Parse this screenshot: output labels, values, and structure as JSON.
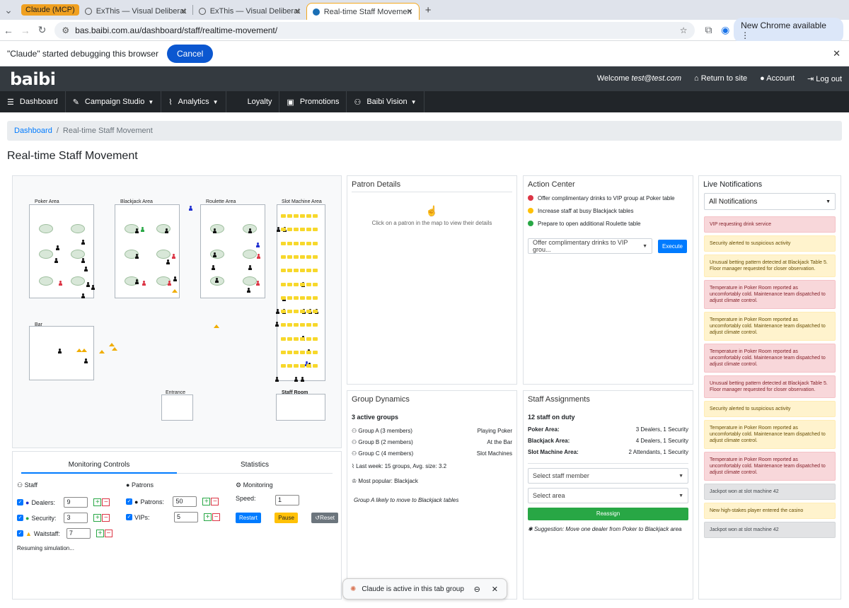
{
  "browser": {
    "tabs": [
      {
        "label": "Claude (MCP)"
      },
      {
        "label": "ExThis — Visual Deliberat"
      },
      {
        "label": "ExThis — Visual Deliberat"
      },
      {
        "label": "Real-time Staff Movemen"
      }
    ],
    "new_tab": "+",
    "url": "bas.baibi.com.au/dashboard/staff/realtime-movement/",
    "new_chrome": "New Chrome available",
    "debug_message": "\"Claude\" started debugging this browser",
    "debug_cancel": "Cancel"
  },
  "header": {
    "logo": "baibi",
    "welcome": "Welcome",
    "user": "test@test.com",
    "return": "Return to site",
    "account": "Account",
    "logout": "Log out"
  },
  "menu": [
    "Dashboard",
    "Campaign Studio",
    "Analytics",
    "Loyalty",
    "Promotions",
    "Baibi Vision"
  ],
  "breadcrumb": {
    "home": "Dashboard",
    "current": "Real-time Staff Movement"
  },
  "page_title": "Real-time Staff Movement",
  "map": {
    "zones": [
      "Poker Area",
      "Blackjack Area",
      "Roulette Area",
      "Slot Machine Area",
      "Bar",
      "Entrance",
      "Staff Room"
    ]
  },
  "controls": {
    "tabs": [
      "Monitoring Controls",
      "Statistics"
    ],
    "staff": {
      "heading": "Staff",
      "dealers_label": "Dealers:",
      "dealers": "9",
      "security_label": "Security:",
      "security": "3",
      "waitstaff_label": "Waitstaff:",
      "waitstaff": "7"
    },
    "patrons": {
      "heading": "Patrons",
      "patrons_label": "Patrons:",
      "patrons": "50",
      "vips_label": "VIPs:",
      "vips": "5"
    },
    "monitoring": {
      "heading": "Monitoring",
      "speed_label": "Speed:",
      "speed": "1",
      "restart": "Restart",
      "pause": "Pause",
      "reset": "Reset"
    },
    "status": "Resuming simulation..."
  },
  "patron_details": {
    "title": "Patron Details",
    "hint": "Click on a patron in the map to view their details"
  },
  "action_center": {
    "title": "Action Center",
    "items": [
      {
        "text": "Offer complimentary drinks to VIP group at Poker table",
        "color": "#dc3545"
      },
      {
        "text": "Increase staff at busy Blackjack tables",
        "color": "#ffc107"
      },
      {
        "text": "Prepare to open additional Roulette table",
        "color": "#28a745"
      }
    ],
    "select": "Offer complimentary drinks to VIP grou...",
    "execute": "Execute"
  },
  "group_dynamics": {
    "title": "Group Dynamics",
    "summary": "3 active groups",
    "groups": [
      {
        "name": "Group A (3 members)",
        "activity": "Playing Poker"
      },
      {
        "name": "Group B (2 members)",
        "activity": "At the Bar"
      },
      {
        "name": "Group C (4 members)",
        "activity": "Slot Machines"
      }
    ],
    "last_week": "Last week: 15 groups, Avg. size: 3.2",
    "popular": "Most popular: Blackjack",
    "prediction": "Group A likely to move to Blackjack tables"
  },
  "staff_assignments": {
    "title": "Staff Assignments",
    "on_duty": "12 staff on duty",
    "areas": [
      {
        "area": "Poker Area:",
        "staff": "3 Dealers, 1 Security"
      },
      {
        "area": "Blackjack Area:",
        "staff": "4 Dealers, 1 Security"
      },
      {
        "area": "Slot Machine Area:",
        "staff": "2 Attendants, 1 Security"
      }
    ],
    "select_staff": "Select staff member",
    "select_area": "Select area",
    "reassign": "Reassign",
    "suggestion": "Suggestion: Move one dealer from Poker to Blackjack area"
  },
  "notifications": {
    "title": "Live Notifications",
    "filter": "All Notifications",
    "items": [
      {
        "text": "VIP requesting drink service",
        "level": "red"
      },
      {
        "text": "Security alerted to suspicious activity",
        "level": "yel"
      },
      {
        "text": "Unusual betting pattern detected at Blackjack Table 5. Floor manager requested for closer observation.",
        "level": "yel"
      },
      {
        "text": "Temperature in Poker Room reported as uncomfortably cold. Maintenance team dispatched to adjust climate control.",
        "level": "red"
      },
      {
        "text": "Temperature in Poker Room reported as uncomfortably cold. Maintenance team dispatched to adjust climate control.",
        "level": "yel"
      },
      {
        "text": "Temperature in Poker Room reported as uncomfortably cold. Maintenance team dispatched to adjust climate control.",
        "level": "red"
      },
      {
        "text": "Unusual betting pattern detected at Blackjack Table 5. Floor manager requested for closer observation.",
        "level": "red"
      },
      {
        "text": "Security alerted to suspicious activity",
        "level": "yel"
      },
      {
        "text": "Temperature in Poker Room reported as uncomfortably cold. Maintenance team dispatched to adjust climate control.",
        "level": "yel"
      },
      {
        "text": "Temperature in Poker Room reported as uncomfortably cold. Maintenance team dispatched to adjust climate control.",
        "level": "red"
      },
      {
        "text": "Jackpot won at slot machine 42",
        "level": "gry"
      },
      {
        "text": "New high-stakes player entered the casino",
        "level": "yel"
      },
      {
        "text": "Jackpot won at slot machine 42",
        "level": "gry"
      }
    ]
  },
  "claude_bar": {
    "text": "Claude is active in this tab group"
  }
}
